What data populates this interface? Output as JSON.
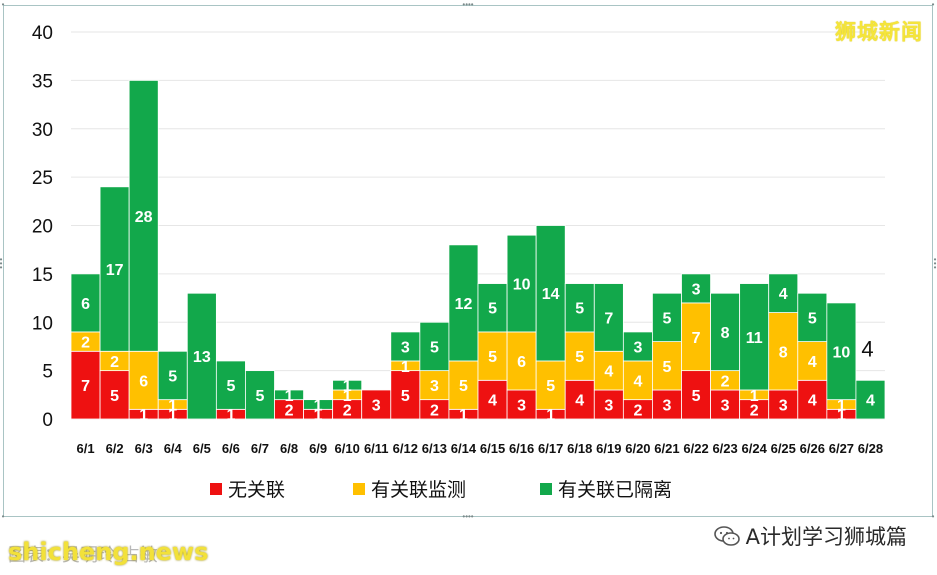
{
  "brand": "狮城新闻",
  "footer": {
    "source": "图表：吴明玲 占敏",
    "site": "shicheng.news",
    "wechat_icon": "wechat-icon",
    "account": "A计划学习狮城篇"
  },
  "colors": {
    "unlinked": "#ee1111",
    "linked_surveillance": "#ffc000",
    "linked_quarantined": "#12a84b"
  },
  "chart_data": {
    "type": "bar",
    "stacked": true,
    "categories": [
      "6/1",
      "6/2",
      "6/3",
      "6/4",
      "6/5",
      "6/6",
      "6/7",
      "6/8",
      "6/9",
      "6/10",
      "6/11",
      "6/12",
      "6/13",
      "6/14",
      "6/15",
      "6/16",
      "6/17",
      "6/18",
      "6/19",
      "6/20",
      "6/21",
      "6/22",
      "6/23",
      "6/24",
      "6/25",
      "6/26",
      "6/27",
      "6/28"
    ],
    "series": [
      {
        "name": "无关联",
        "color": "#ee1111",
        "values": [
          7,
          5,
          1,
          1,
          0,
          1,
          0,
          2,
          1,
          2,
          3,
          5,
          2,
          1,
          4,
          3,
          1,
          4,
          3,
          2,
          3,
          5,
          3,
          2,
          3,
          4,
          1,
          0
        ]
      },
      {
        "name": "有关联监测",
        "color": "#ffc000",
        "values": [
          2,
          2,
          6,
          1,
          0,
          0,
          0,
          0,
          0,
          1,
          0,
          1,
          3,
          5,
          5,
          6,
          5,
          5,
          4,
          4,
          5,
          7,
          2,
          1,
          8,
          4,
          1,
          0
        ]
      },
      {
        "name": "有关联已隔离",
        "color": "#12a84b",
        "values": [
          6,
          17,
          28,
          5,
          13,
          5,
          5,
          1,
          1,
          1,
          0,
          3,
          5,
          12,
          5,
          10,
          14,
          5,
          7,
          3,
          5,
          3,
          8,
          11,
          4,
          5,
          10,
          4
        ]
      }
    ],
    "ylim": [
      0,
      40
    ],
    "yticks": [
      0,
      5,
      10,
      15,
      20,
      25,
      30,
      35,
      40
    ],
    "grid": true,
    "legend_position": "bottom",
    "annotations": [
      {
        "category": "6/28",
        "text": "4"
      }
    ]
  }
}
